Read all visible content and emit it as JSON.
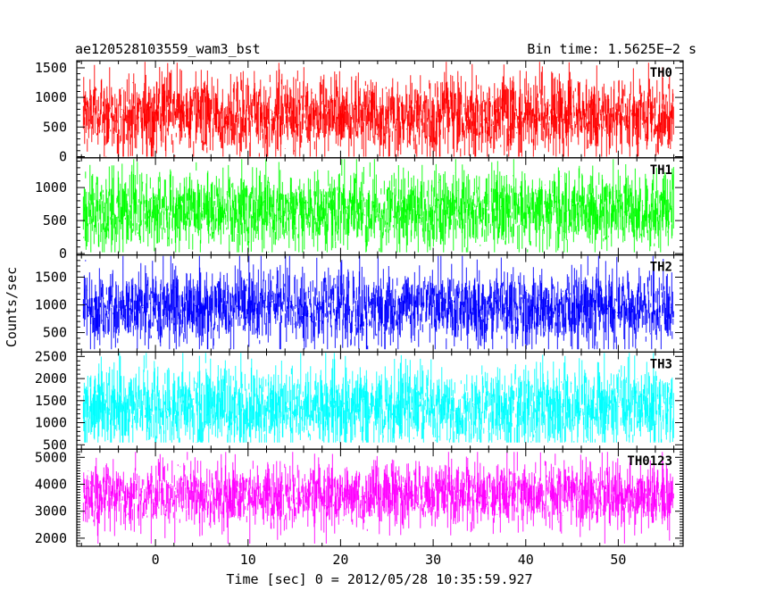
{
  "chart_data": {
    "type": "line",
    "title_left": "ae120528103559_wam3_bst",
    "title_right": "Bin time: 1.5625E−2 s",
    "xlabel": "Time [sec] 0 = 2012/05/28 10:35:59.927",
    "ylabel": "Counts/sec",
    "xlim": [
      -8.5,
      57
    ],
    "x_data_range": [
      -7.8,
      56.0
    ],
    "x_ticks": [
      0,
      10,
      20,
      30,
      40,
      50
    ],
    "x_tick_labels": [
      "0",
      "10",
      "20",
      "30",
      "40",
      "50"
    ],
    "grid": false,
    "panels": [
      {
        "name": "TH0",
        "color": "#ff0000",
        "ylim": [
          -20,
          1620
        ],
        "y_ticks": [
          0,
          500,
          1000,
          1500
        ],
        "y_tick_labels": [
          "0",
          "500",
          "1000",
          "1500"
        ],
        "mean": 700,
        "low": 0,
        "high": 1600
      },
      {
        "name": "TH1",
        "color": "#00ff00",
        "ylim": [
          -20,
          1450
        ],
        "y_ticks": [
          0,
          500,
          1000
        ],
        "y_tick_labels": [
          "0",
          "500",
          "1000"
        ],
        "mean": 650,
        "low": 20,
        "high": 1430
      },
      {
        "name": "TH2",
        "color": "#0000ff",
        "ylim": [
          150,
          1900
        ],
        "y_ticks": [
          500,
          1000,
          1500
        ],
        "y_tick_labels": [
          "500",
          "1000",
          "1500"
        ],
        "mean": 950,
        "low": 200,
        "high": 1880
      },
      {
        "name": "TH3",
        "color": "#00ffff",
        "ylim": [
          400,
          2600
        ],
        "y_ticks": [
          500,
          1000,
          1500,
          2000,
          2500
        ],
        "y_tick_labels": [
          "500",
          "1000",
          "1500",
          "2000",
          "2500"
        ],
        "mean": 1350,
        "low": 550,
        "high": 2580
      },
      {
        "name": "TH0123",
        "color": "#ff00ff",
        "ylim": [
          1700,
          5300
        ],
        "y_ticks": [
          2000,
          3000,
          4000,
          5000
        ],
        "y_tick_labels": [
          "2000",
          "3000",
          "4000",
          "5000"
        ],
        "mean": 3600,
        "low": 1800,
        "high": 5200
      }
    ]
  }
}
